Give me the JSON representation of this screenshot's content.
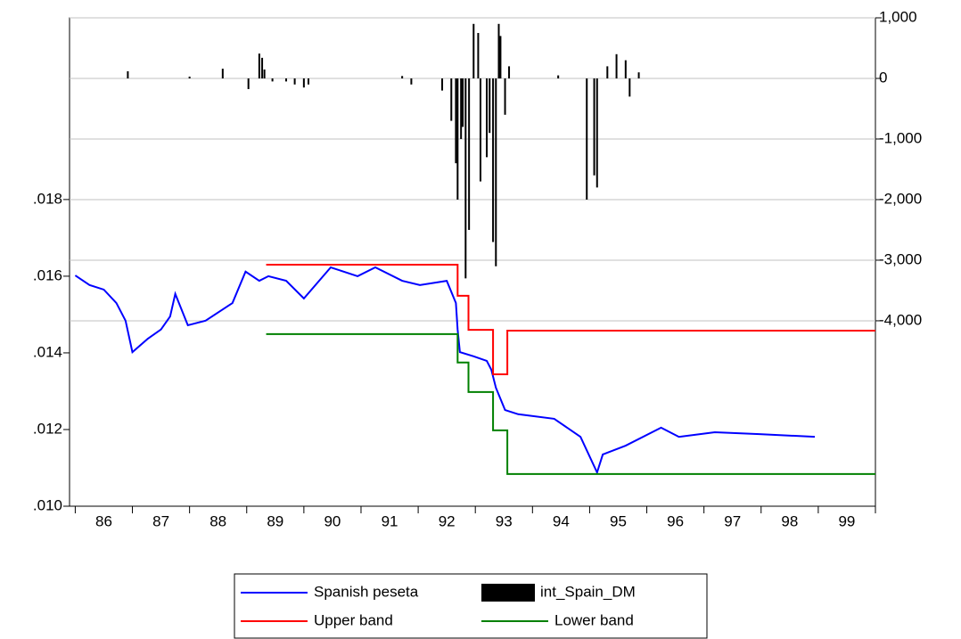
{
  "chart_data": {
    "type": "line",
    "categories": [
      "86",
      "87",
      "88",
      "89",
      "90",
      "91",
      "92",
      "93",
      "94",
      "95",
      "96",
      "97",
      "98",
      "99"
    ],
    "xlim": [
      1985.9,
      2000.0
    ],
    "ylim": [
      0.01,
      0.02274
    ],
    "yticks": [
      {
        "value": 0.01,
        "label": ".010"
      },
      {
        "value": 0.012,
        "label": ".012"
      },
      {
        "value": 0.014,
        "label": ".014"
      },
      {
        "value": 0.016,
        "label": ".016"
      },
      {
        "value": 0.018,
        "label": ".018"
      }
    ],
    "y2lim": [
      -7060,
      1000
    ],
    "y2ticks": [
      {
        "value": 1000,
        "label": "1,000"
      },
      0,
      {
        "value": -1000,
        "label": "-1,000"
      },
      {
        "value": -2000,
        "label": "-2,000"
      },
      {
        "value": -3000,
        "label": "-3,000"
      },
      {
        "value": -4000,
        "label": "-4,000"
      }
    ],
    "grid": true,
    "series": [
      {
        "name": "Spanish peseta",
        "color": "#0000ff",
        "kind": "line",
        "x": [
          1986.0,
          1986.25,
          1986.5,
          1986.72,
          1986.88,
          1987.0,
          1987.27,
          1987.5,
          1987.66,
          1987.75,
          1987.97,
          1988.28,
          1988.75,
          1988.98,
          1989.22,
          1989.38,
          1989.69,
          1990.0,
          1990.47,
          1990.94,
          1991.25,
          1991.72,
          1992.03,
          1992.5,
          1992.66,
          1992.69,
          1992.73,
          1992.97,
          1993.2,
          1993.28,
          1993.36,
          1993.52,
          1993.75,
          1994.38,
          1994.84,
          1995.13,
          1995.23,
          1995.63,
          1996.25,
          1996.56,
          1997.19,
          1997.97,
          1998.94
        ],
        "values": [
          0.01602,
          0.01577,
          0.01565,
          0.0153,
          0.01484,
          0.01402,
          0.01437,
          0.01461,
          0.01495,
          0.01554,
          0.01472,
          0.01484,
          0.0153,
          0.01612,
          0.01588,
          0.016,
          0.01588,
          0.01542,
          0.01623,
          0.016,
          0.01623,
          0.01588,
          0.01577,
          0.01588,
          0.0153,
          0.01461,
          0.01402,
          0.01391,
          0.01379,
          0.01356,
          0.01309,
          0.01251,
          0.0124,
          0.01228,
          0.01181,
          0.01088,
          0.01135,
          0.01158,
          0.01205,
          0.01181,
          0.01193,
          0.01188,
          0.01181
        ]
      },
      {
        "name": "int_Spain_DM",
        "color": "#000000",
        "kind": "bar",
        "axis": "y2",
        "x": [
          1986.92,
          1988.0,
          1988.58,
          1989.03,
          1989.22,
          1989.27,
          1989.31,
          1989.45,
          1989.69,
          1989.84,
          1990.0,
          1990.08,
          1991.72,
          1991.88,
          1992.42,
          1992.58,
          1992.66,
          1992.69,
          1992.75,
          1992.78,
          1992.83,
          1992.89,
          1992.97,
          1993.05,
          1993.09,
          1993.2,
          1993.25,
          1993.31,
          1993.36,
          1993.41,
          1993.44,
          1993.52,
          1993.59,
          1994.45,
          1994.95,
          1995.08,
          1995.13,
          1995.31,
          1995.47,
          1995.63,
          1995.7,
          1995.86
        ],
        "values": [
          118,
          30,
          160,
          -176,
          410,
          340,
          147,
          -50,
          -50,
          -100,
          -150,
          -100,
          40,
          -100,
          -200,
          -700,
          -1400,
          -2000,
          -1000,
          -800,
          -3300,
          -2500,
          900,
          750,
          -1700,
          -1300,
          -900,
          -2700,
          -3100,
          900,
          700,
          -600,
          200,
          50,
          -2000,
          -1600,
          -1800,
          200,
          400,
          300,
          -300,
          100
        ]
      },
      {
        "name": "Upper band",
        "color": "#ff0000",
        "kind": "line",
        "x": [
          1989.34,
          1992.69,
          1992.69,
          1992.88,
          1992.88,
          1993.31,
          1993.31,
          1993.56,
          1993.56,
          2000.0
        ],
        "values": [
          0.0163,
          0.0163,
          0.01549,
          0.01549,
          0.0146,
          0.0146,
          0.01344,
          0.01344,
          0.01458,
          0.01458
        ]
      },
      {
        "name": "Lower band",
        "color": "#008000",
        "kind": "line",
        "x": [
          1989.34,
          1992.69,
          1992.69,
          1992.88,
          1992.88,
          1993.31,
          1993.31,
          1993.56,
          1993.56,
          2000.0
        ],
        "values": [
          0.01449,
          0.01449,
          0.01375,
          0.01375,
          0.01298,
          0.01298,
          0.01198,
          0.01198,
          0.01084,
          0.01084
        ]
      }
    ]
  }
}
